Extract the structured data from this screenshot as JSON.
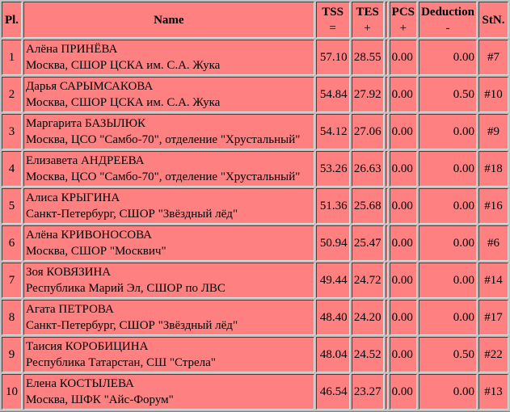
{
  "headers": {
    "pl": "Pl.",
    "name": "Name",
    "tss": "TSS",
    "tss_sub": "=",
    "tes": "TES",
    "tes_sub": "+",
    "pcs": "PCS",
    "pcs_sub": "+",
    "ded": "Deduction",
    "ded_sub": "-",
    "stn": "StN."
  },
  "rows": [
    {
      "pl": "1",
      "name": "Алёна ПРИНЁВА",
      "club": "Москва, СШОР ЦСКА им. С.А. Жука",
      "tss": "57.10",
      "tes": "28.55",
      "pcs": "0.00",
      "ded": "0.00",
      "stn": "#7"
    },
    {
      "pl": "2",
      "name": "Дарья САРЫМСАКОВА",
      "club": "Москва, СШОР ЦСКА им. С.А. Жука",
      "tss": "54.84",
      "tes": "27.92",
      "pcs": "0.00",
      "ded": "0.50",
      "stn": "#10"
    },
    {
      "pl": "3",
      "name": "Маргарита БАЗЫЛЮК",
      "club": "Москва, ЦСО \"Самбо-70\", отделение \"Хрустальный\"",
      "tss": "54.12",
      "tes": "27.06",
      "pcs": "0.00",
      "ded": "0.00",
      "stn": "#9"
    },
    {
      "pl": "4",
      "name": "Елизавета АНДРЕЕВА",
      "club": "Москва, ЦСО \"Самбо-70\", отделение \"Хрустальный\"",
      "tss": "53.26",
      "tes": "26.63",
      "pcs": "0.00",
      "ded": "0.00",
      "stn": "#18"
    },
    {
      "pl": "5",
      "name": "Алиса КРЫГИНА",
      "club": "Санкт-Петербург, СШОР \"Звёздный лёд\"",
      "tss": "51.36",
      "tes": "25.68",
      "pcs": "0.00",
      "ded": "0.00",
      "stn": "#16"
    },
    {
      "pl": "6",
      "name": "Алёна КРИВОНОСОВА",
      "club": "Москва, СШОР \"Москвич\"",
      "tss": "50.94",
      "tes": "25.47",
      "pcs": "0.00",
      "ded": "0.00",
      "stn": "#6"
    },
    {
      "pl": "7",
      "name": "Зоя КОВЯЗИНА",
      "club": "Республика Марий Эл, СШОР по ЛВС",
      "tss": "49.44",
      "tes": "24.72",
      "pcs": "0.00",
      "ded": "0.00",
      "stn": "#14"
    },
    {
      "pl": "8",
      "name": "Агата ПЕТРОВА",
      "club": "Санкт-Петербург, СШОР \"Звёздный лёд\"",
      "tss": "48.40",
      "tes": "24.20",
      "pcs": "0.00",
      "ded": "0.00",
      "stn": "#17"
    },
    {
      "pl": "9",
      "name": "Таисия КОРОБИЦИНА",
      "club": "Республика Татарстан, СШ \"Стрела\"",
      "tss": "48.04",
      "tes": "24.52",
      "pcs": "0.00",
      "ded": "0.50",
      "stn": "#22"
    },
    {
      "pl": "10",
      "name": "Елена КОСТЫЛЕВА",
      "club": "Москва, ШФК \"Айс-Форум\"",
      "tss": "46.54",
      "tes": "23.27",
      "pcs": "0.00",
      "ded": "0.00",
      "stn": "#13"
    }
  ]
}
